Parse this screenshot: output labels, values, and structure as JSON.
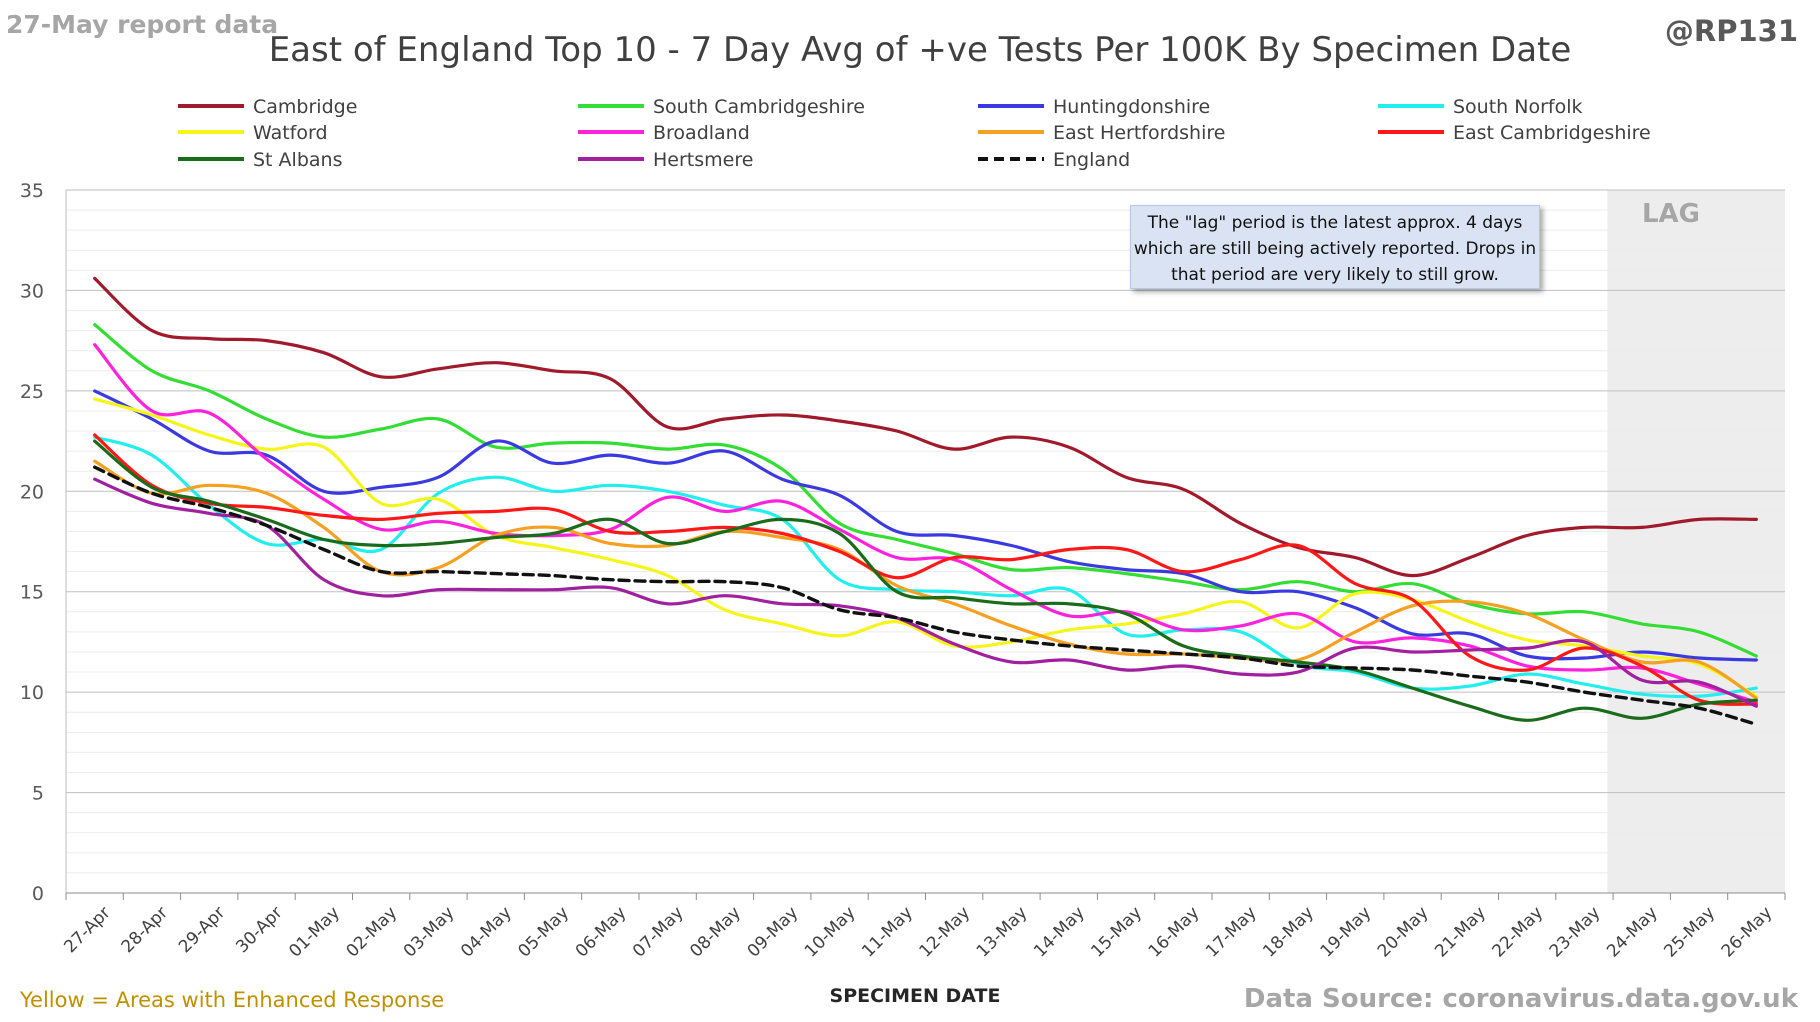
{
  "header": {
    "report_label": "27-May report data",
    "handle": "@RP131"
  },
  "footer": {
    "enhanced_note": "Yellow = Areas with Enhanced Response",
    "source": "Data Source: coronavirus.data.gov.uk"
  },
  "annotation": {
    "lag_label": "LAG",
    "lag_note": "The \"lag\" period is the latest approx. 4 days which are still being actively reported.  Drops in that period are very likely to still grow."
  },
  "colors": {
    "lag_shading": "#ededed",
    "gridline": "#d9d9d9",
    "title_text": "#404040"
  },
  "chart_data": {
    "type": "line",
    "title": "East of England Top 10 - 7 Day Avg of +ve Tests Per 100K By Specimen Date",
    "xlabel": "SPECIMEN DATE",
    "ylabel": "",
    "ylim": [
      0,
      35
    ],
    "yticks": [
      0,
      5,
      10,
      15,
      20,
      25,
      30,
      35
    ],
    "grid": true,
    "legend_position": "top",
    "lag_region": [
      "23-May",
      "26-May"
    ],
    "x": [
      "27-Apr",
      "28-Apr",
      "29-Apr",
      "30-Apr",
      "01-May",
      "02-May",
      "03-May",
      "04-May",
      "05-May",
      "06-May",
      "07-May",
      "08-May",
      "09-May",
      "10-May",
      "11-May",
      "12-May",
      "13-May",
      "14-May",
      "15-May",
      "16-May",
      "17-May",
      "18-May",
      "19-May",
      "20-May",
      "21-May",
      "22-May",
      "23-May",
      "24-May",
      "25-May",
      "26-May"
    ],
    "series": [
      {
        "name": "Cambridge",
        "color": "#a01a2b",
        "dashed": false,
        "values": [
          30.6,
          28.0,
          27.6,
          27.5,
          26.9,
          25.7,
          26.1,
          26.4,
          26.0,
          25.6,
          23.2,
          23.6,
          23.8,
          23.5,
          23.0,
          22.1,
          22.7,
          22.2,
          20.7,
          20.1,
          18.4,
          17.2,
          16.7,
          15.8,
          16.7,
          17.8,
          18.2,
          18.2,
          18.6,
          18.6
        ]
      },
      {
        "name": "South Cambridgeshire",
        "color": "#33dd33",
        "dashed": false,
        "values": [
          28.3,
          26.0,
          25.0,
          23.6,
          22.7,
          23.1,
          23.6,
          22.2,
          22.4,
          22.4,
          22.1,
          22.3,
          21.1,
          18.4,
          17.6,
          16.9,
          16.1,
          16.2,
          15.9,
          15.5,
          15.1,
          15.5,
          15.0,
          15.4,
          14.4,
          13.9,
          14.0,
          13.4,
          13.0,
          11.8
        ]
      },
      {
        "name": "Huntingdonshire",
        "color": "#3a3ae0",
        "dashed": false,
        "values": [
          25.0,
          23.6,
          22.0,
          21.8,
          20.0,
          20.2,
          20.7,
          22.5,
          21.4,
          21.8,
          21.4,
          22.0,
          20.6,
          19.8,
          18.0,
          17.8,
          17.3,
          16.5,
          16.1,
          15.9,
          15.0,
          15.0,
          14.2,
          12.9,
          12.9,
          11.8,
          11.7,
          12.0,
          11.7,
          11.6
        ]
      },
      {
        "name": "South Norfolk",
        "color": "#22eeee",
        "dashed": false,
        "values": [
          22.7,
          21.8,
          19.3,
          17.4,
          17.6,
          17.1,
          19.9,
          20.7,
          20.0,
          20.3,
          20.0,
          19.3,
          18.6,
          15.6,
          15.1,
          15.0,
          14.8,
          15.1,
          12.9,
          13.1,
          13.0,
          11.4,
          11.0,
          10.2,
          10.3,
          10.9,
          10.4,
          9.9,
          9.8,
          10.2
        ]
      },
      {
        "name": "Watford",
        "color": "#f5f51a",
        "dashed": false,
        "values": [
          24.6,
          23.8,
          22.8,
          22.1,
          22.2,
          19.4,
          19.6,
          17.8,
          17.2,
          16.6,
          15.8,
          14.1,
          13.4,
          12.8,
          13.5,
          12.3,
          12.5,
          13.1,
          13.4,
          13.9,
          14.5,
          13.2,
          14.9,
          14.6,
          13.5,
          12.6,
          12.3,
          11.8,
          11.4,
          9.8
        ]
      },
      {
        "name": "Broadland",
        "color": "#ff22dd",
        "dashed": false,
        "values": [
          27.3,
          24.0,
          23.9,
          21.6,
          19.6,
          18.1,
          18.5,
          17.9,
          17.8,
          18.1,
          19.7,
          19.0,
          19.5,
          18.1,
          16.7,
          16.6,
          15.1,
          13.8,
          14.0,
          13.1,
          13.3,
          13.9,
          12.5,
          12.7,
          12.3,
          11.3,
          11.1,
          11.2,
          10.4,
          9.5
        ]
      },
      {
        "name": "East Hertfordshire",
        "color": "#f5a020",
        "dashed": false,
        "values": [
          21.5,
          19.9,
          20.3,
          19.9,
          18.2,
          16.0,
          16.2,
          17.8,
          18.2,
          17.4,
          17.3,
          18.0,
          17.7,
          17.1,
          15.3,
          14.4,
          13.3,
          12.4,
          11.9,
          11.9,
          11.7,
          11.6,
          13.0,
          14.3,
          14.5,
          13.9,
          12.6,
          11.5,
          11.5,
          9.7
        ]
      },
      {
        "name": "East Cambridgeshire",
        "color": "#ff1818",
        "dashed": false,
        "values": [
          22.8,
          20.3,
          19.4,
          19.2,
          18.8,
          18.6,
          18.9,
          19.0,
          19.1,
          18.0,
          18.0,
          18.2,
          17.9,
          17.0,
          15.7,
          16.7,
          16.6,
          17.1,
          17.1,
          16.0,
          16.6,
          17.3,
          15.4,
          14.6,
          11.8,
          11.1,
          12.2,
          11.3,
          9.6,
          9.4
        ]
      },
      {
        "name": "St Albans",
        "color": "#1a6b1a",
        "dashed": false,
        "values": [
          22.5,
          20.2,
          19.5,
          18.6,
          17.6,
          17.3,
          17.4,
          17.7,
          17.9,
          18.6,
          17.4,
          18.0,
          18.6,
          17.9,
          15.0,
          14.7,
          14.4,
          14.4,
          13.9,
          12.3,
          11.8,
          11.5,
          11.1,
          10.2,
          9.3,
          8.6,
          9.2,
          8.7,
          9.4,
          9.6
        ]
      },
      {
        "name": "Hertsmere",
        "color": "#a020a0",
        "dashed": false,
        "values": [
          20.6,
          19.4,
          18.9,
          18.3,
          15.6,
          14.8,
          15.1,
          15.1,
          15.1,
          15.2,
          14.4,
          14.8,
          14.4,
          14.3,
          13.7,
          12.4,
          11.5,
          11.6,
          11.1,
          11.3,
          10.9,
          11.0,
          12.2,
          12.0,
          12.1,
          12.2,
          12.5,
          10.6,
          10.5,
          9.3
        ]
      },
      {
        "name": "England",
        "color": "#111111",
        "dashed": true,
        "values": [
          21.2,
          19.9,
          19.2,
          18.3,
          17.1,
          16.0,
          16.0,
          15.9,
          15.8,
          15.6,
          15.5,
          15.5,
          15.2,
          14.1,
          13.7,
          13.0,
          12.6,
          12.3,
          12.1,
          11.9,
          11.7,
          11.3,
          11.2,
          11.1,
          10.8,
          10.5,
          10.0,
          9.6,
          9.2,
          8.4
        ]
      }
    ]
  }
}
